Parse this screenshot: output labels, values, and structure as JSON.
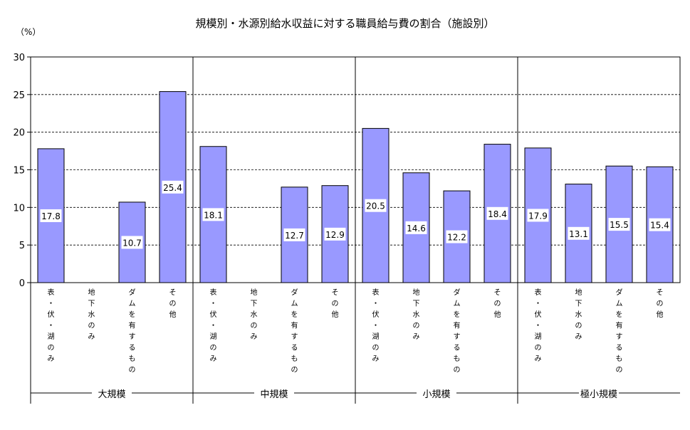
{
  "chart_data": {
    "type": "bar",
    "title": "規模別・水源別給水収益に対する職員給与費の割合（施設別）",
    "ylabel": "（%）",
    "ylim": [
      0,
      30
    ],
    "yticks": [
      0,
      5,
      10,
      15,
      20,
      25,
      30
    ],
    "grid": true,
    "categories": [
      "表・伏・湖のみ",
      "地下水のみ",
      "ダムを有するもの",
      "その他",
      "表・伏・湖のみ",
      "地下水のみ",
      "ダムを有するもの",
      "その他",
      "表・伏・湖のみ",
      "地下水のみ",
      "ダムを有するもの",
      "その他",
      "表・伏・湖のみ",
      "地下水のみ",
      "ダムを有するもの",
      "その他"
    ],
    "groups": [
      "大規模",
      "中規模",
      "小規模",
      "極小規模"
    ],
    "values": [
      17.8,
      null,
      10.7,
      25.4,
      18.1,
      null,
      12.7,
      12.9,
      20.5,
      14.6,
      12.2,
      18.4,
      17.9,
      13.1,
      15.5,
      15.4
    ],
    "value_labels": [
      "17.8",
      "",
      "10.7",
      "25.4",
      "18.1",
      "",
      "12.7",
      "12.9",
      "20.5",
      "14.6",
      "12.2",
      "18.4",
      "17.9",
      "13.1",
      "15.5",
      "15.4"
    ],
    "colors": {
      "bar": "#9999ff",
      "bar_edge": "#000000",
      "grid": "#000000"
    }
  }
}
